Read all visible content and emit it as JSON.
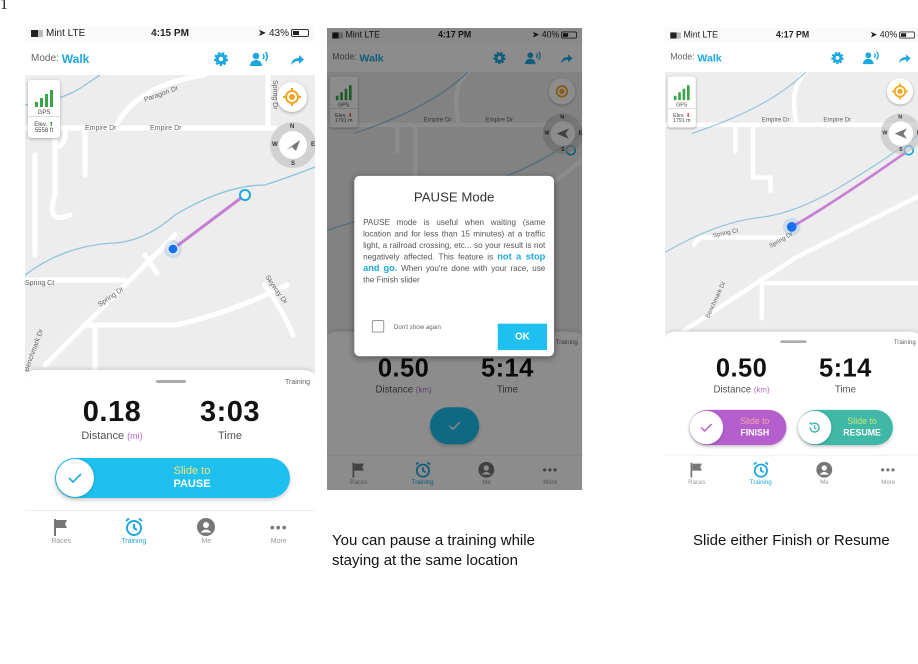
{
  "page_number": "1",
  "colors": {
    "accent": "#1ea8e0",
    "route": "#c77fd6",
    "finish": "#b55fcf",
    "resume": "#3fb8a8",
    "gps": "#3aa44b",
    "locate": "#f5a623"
  },
  "tabs": [
    {
      "label": "Races",
      "icon": "flag-icon"
    },
    {
      "label": "Training",
      "icon": "alarm-clock-icon"
    },
    {
      "label": "Me",
      "icon": "user-icon"
    },
    {
      "label": "More",
      "icon": "more-icon"
    }
  ],
  "screens": [
    {
      "status": {
        "carrier": "Mint  LTE",
        "time": "4:15 PM",
        "battery": "43%"
      },
      "mode_label": "Mode:",
      "mode": "Walk",
      "map": {
        "gps": "GPS",
        "elev_label": "Elev.",
        "elev": "5558 ft",
        "streets": [
          "Paragon Dr",
          "Empire Dr",
          "Empire Dr",
          "Spring Dr",
          "Spring Ct",
          "Skyway Dr",
          "Benchmark Dr",
          "Spring Dr"
        ],
        "compass": {
          "n": "N",
          "s": "S",
          "w": "W",
          "e": "E"
        }
      },
      "sheet": {
        "training": "Training",
        "distance": "0.18",
        "distance_label": "Distance",
        "distance_unit": "(mi)",
        "time": "3:03",
        "time_label": "Time"
      },
      "slider": {
        "line1": "Slide to",
        "line2": "PAUSE"
      }
    },
    {
      "status": {
        "carrier": "Mint  LTE",
        "time": "4:17 PM",
        "battery": "40%"
      },
      "mode_label": "Mode:",
      "mode": "Walk",
      "map": {
        "gps": "GPS",
        "elev_label": "Elev.",
        "elev": "1791 m",
        "streets": [
          "Empire Dr",
          "Empire Dr"
        ],
        "compass": {
          "n": "N",
          "s": "S",
          "w": "W",
          "e": "E"
        }
      },
      "sheet": {
        "training": "Training",
        "distance": "0.50",
        "distance_label": "Distance",
        "distance_unit": "(km)",
        "time": "5:14",
        "time_label": "Time"
      },
      "dialog": {
        "title": "PAUSE Mode",
        "body_1": "PAUSE mode is useful when waiting (same location and for less than 15 minutes) at a traffic light, a railroad crossing, etc... so your result is not negatively affected. This feature is ",
        "body_bold": "not a stop and go.",
        "body_2": " When you're done with your race, use the Finish slider",
        "checkbox": "Don't show again",
        "ok": "OK"
      }
    },
    {
      "status": {
        "carrier": "Mint  LTE",
        "time": "4:17 PM",
        "battery": "40%"
      },
      "mode_label": "Mode:",
      "mode": "Walk",
      "map": {
        "gps": "GPS",
        "elev_label": "Elev.",
        "elev": "1791 m",
        "streets": [
          "Empire Dr",
          "Empire Dr",
          "Spring Ct",
          "Spring Dr",
          "Benchmark Dr"
        ],
        "compass": {
          "n": "N",
          "s": "S",
          "w": "W",
          "e": "E"
        }
      },
      "sheet": {
        "training": "Training",
        "distance": "0.50",
        "distance_label": "Distance",
        "distance_unit": "(km)",
        "time": "5:14",
        "time_label": "Time"
      },
      "finish": {
        "line1": "Slide to",
        "line2": "FINISH"
      },
      "resume": {
        "line1": "Slide to",
        "line2": "RESUME"
      }
    }
  ],
  "captions": [
    "You can pause a training while staying at the same location",
    "Slide either Finish or Resume"
  ]
}
